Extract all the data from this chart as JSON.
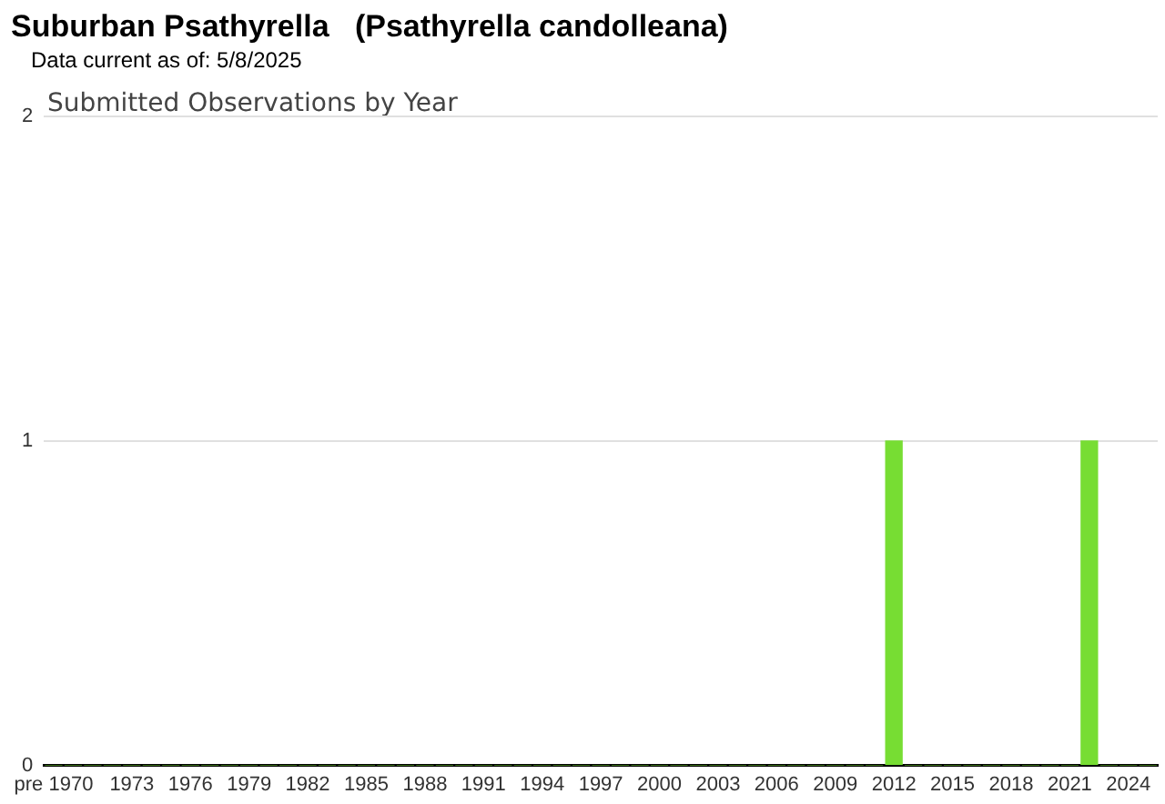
{
  "chart_data": {
    "type": "bar",
    "title": "Suburban Psathyrella   (Psathyrella candolleana)",
    "subtitle": "Data current as of: 5/8/2025",
    "annotations": [
      "Submitted Observations by Year"
    ],
    "categories": [
      "pre 1970",
      null,
      null,
      null,
      "1973",
      null,
      null,
      "1976",
      null,
      null,
      "1979",
      null,
      null,
      "1982",
      null,
      null,
      "1985",
      null,
      null,
      "1988",
      null,
      null,
      "1991",
      null,
      null,
      "1994",
      null,
      null,
      "1997",
      null,
      null,
      "2000",
      null,
      null,
      "2003",
      null,
      null,
      "2006",
      null,
      null,
      "2009",
      null,
      null,
      "2012",
      null,
      null,
      "2015",
      null,
      null,
      "2018",
      null,
      null,
      "2021",
      null,
      null,
      "2024",
      null
    ],
    "values": [
      0,
      0,
      0,
      0,
      0,
      0,
      0,
      0,
      0,
      0,
      0,
      0,
      0,
      0,
      0,
      0,
      0,
      0,
      0,
      0,
      0,
      0,
      0,
      0,
      0,
      0,
      0,
      0,
      0,
      0,
      0,
      0,
      0,
      0,
      0,
      0,
      0,
      0,
      0,
      0,
      0,
      0,
      0,
      1,
      0,
      0,
      0,
      0,
      0,
      0,
      0,
      0,
      0,
      1,
      0,
      0,
      0
    ],
    "color": "#77dd33",
    "ylim": [
      0,
      2
    ],
    "yticks": [
      0,
      1,
      2
    ],
    "grid": "y",
    "legend": false
  }
}
